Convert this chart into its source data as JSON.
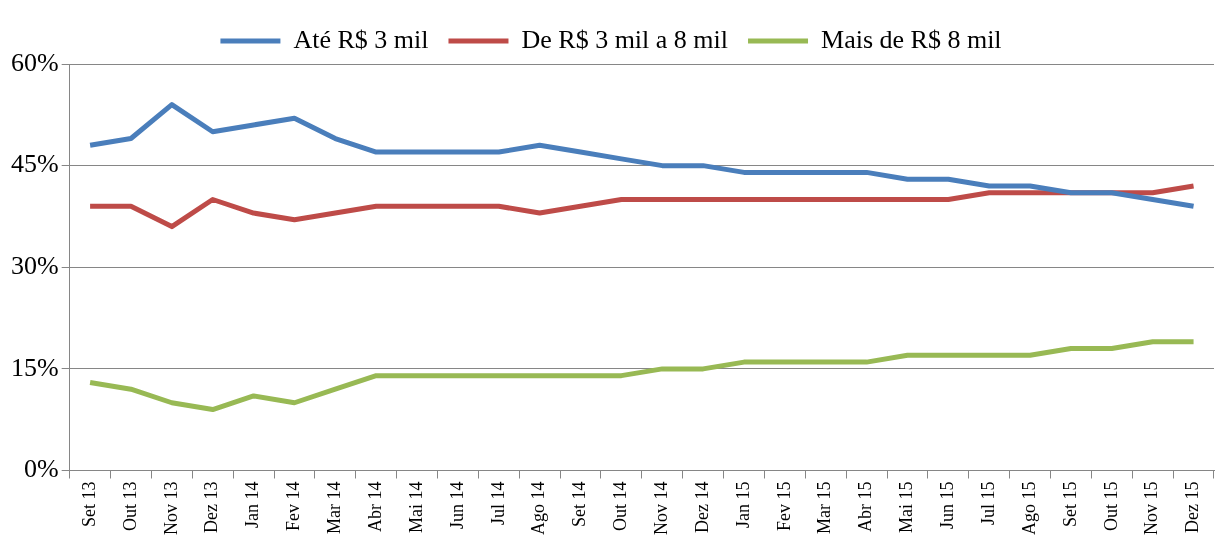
{
  "chart_data": {
    "type": "line",
    "categories": [
      "Set 13",
      "Out 13",
      "Nov 13",
      "Dez 13",
      "Jan 14",
      "Fev 14",
      "Mar 14",
      "Abr 14",
      "Mai 14",
      "Jun 14",
      "Jul 14",
      "Ago 14",
      "Set 14",
      "Out 14",
      "Nov 14",
      "Dez 14",
      "Jan 15",
      "Fev 15",
      "Mar 15",
      "Abr 15",
      "Mai 15",
      "Jun 15",
      "Jul 15",
      "Ago 15",
      "Set 15",
      "Out 15",
      "Nov 15",
      "Dez 15"
    ],
    "series": [
      {
        "name": "Até R$ 3 mil",
        "color": "#4a7ebb",
        "values": [
          48,
          49,
          54,
          50,
          51,
          52,
          49,
          47,
          47,
          47,
          47,
          48,
          47,
          46,
          45,
          45,
          44,
          44,
          44,
          44,
          43,
          43,
          42,
          42,
          41,
          41,
          40,
          39
        ]
      },
      {
        "name": "De R$ 3 mil a 8 mil",
        "color": "#be4b48",
        "values": [
          39,
          39,
          36,
          40,
          38,
          37,
          38,
          39,
          39,
          39,
          39,
          38,
          39,
          40,
          40,
          40,
          40,
          40,
          40,
          40,
          40,
          40,
          41,
          41,
          41,
          41,
          41,
          42
        ]
      },
      {
        "name": "Mais de R$ 8 mil",
        "color": "#98b954",
        "values": [
          13,
          12,
          10,
          9,
          11,
          10,
          12,
          14,
          14,
          14,
          14,
          14,
          14,
          14,
          15,
          15,
          16,
          16,
          16,
          16,
          17,
          17,
          17,
          17,
          18,
          18,
          19,
          19
        ]
      }
    ],
    "ylim": [
      0,
      60
    ],
    "yticks": [
      {
        "value": 0,
        "label": "0%"
      },
      {
        "value": 15,
        "label": "15%"
      },
      {
        "value": 30,
        "label": "30%"
      },
      {
        "value": 45,
        "label": "45%"
      },
      {
        "value": 60,
        "label": "60%"
      }
    ],
    "grid": "y",
    "legend": "top",
    "marker": "none",
    "line_style": "solid"
  }
}
